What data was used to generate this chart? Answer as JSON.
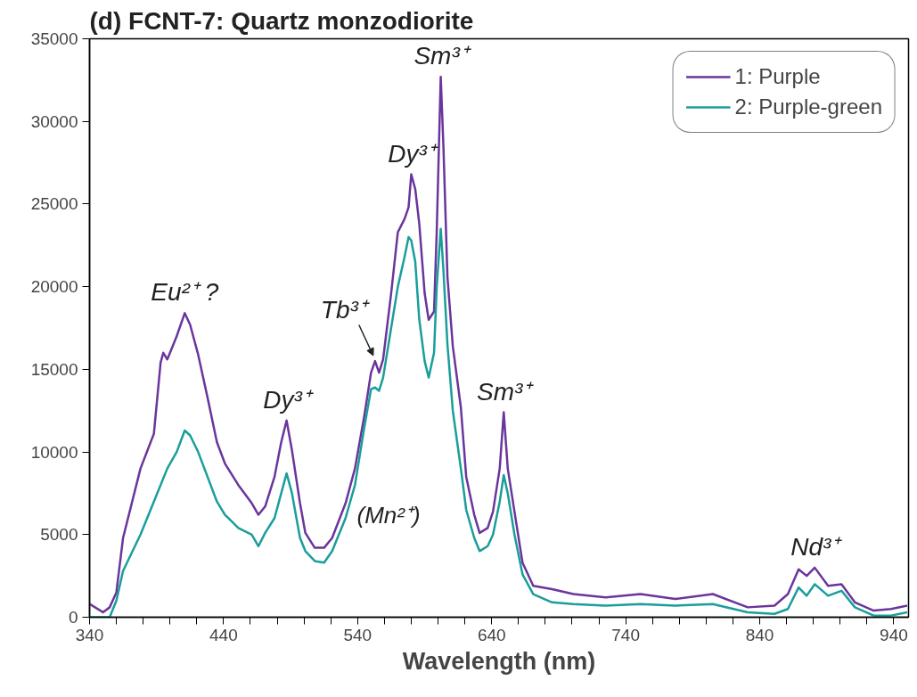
{
  "chart_data": {
    "type": "line",
    "title": "(d) FCNT-7: Quartz monzodiorite",
    "xlabel": "Wavelength (nm)",
    "xlim": [
      340,
      951
    ],
    "ylim": [
      0,
      35000
    ],
    "xticks": [
      340,
      {
        "value": 360,
        "label": null
      },
      {
        "value": 380,
        "label": null
      },
      {
        "value": 400,
        "label": null
      },
      {
        "value": 420,
        "label": null
      },
      440,
      {
        "value": 460,
        "label": null
      },
      {
        "value": 480,
        "label": null
      },
      {
        "value": 500,
        "label": null
      },
      {
        "value": 520,
        "label": null
      },
      540,
      {
        "value": 560,
        "label": null
      },
      {
        "value": 580,
        "label": null
      },
      {
        "value": 600,
        "label": null
      },
      {
        "value": 620,
        "label": null
      },
      640,
      {
        "value": 660,
        "label": null
      },
      {
        "value": 680,
        "label": null
      },
      {
        "value": 700,
        "label": null
      },
      {
        "value": 720,
        "label": null
      },
      740,
      {
        "value": 760,
        "label": null
      },
      {
        "value": 780,
        "label": null
      },
      {
        "value": 800,
        "label": null
      },
      {
        "value": 820,
        "label": null
      },
      840,
      {
        "value": 860,
        "label": null
      },
      {
        "value": 880,
        "label": null
      },
      {
        "value": 900,
        "label": null
      },
      {
        "value": 920,
        "label": null
      },
      940
    ],
    "yticks": [
      0,
      5000,
      10000,
      15000,
      20000,
      25000,
      30000,
      35000
    ],
    "grid": false,
    "legend": "top right",
    "marker": "none",
    "line_style": "solid",
    "series": [
      {
        "name": "1: Purple",
        "color": "#6a359c",
        "x": [
          340,
          350,
          355,
          360,
          365,
          378,
          388,
          393,
          395,
          398,
          405,
          411,
          415,
          421,
          428,
          435,
          441,
          451,
          461,
          466,
          471,
          478,
          483,
          487,
          491,
          497,
          501,
          508,
          515,
          521,
          531,
          538,
          545,
          550,
          553,
          556,
          559,
          565,
          570,
          575,
          578,
          580,
          583,
          586,
          590,
          593,
          597,
          599,
          602,
          604,
          607,
          611,
          617,
          621,
          627,
          631,
          637,
          641,
          646,
          649,
          652,
          657,
          663,
          671,
          685,
          701,
          725,
          751,
          777,
          805,
          831,
          851,
          861,
          869,
          875,
          881,
          891,
          901,
          911,
          925,
          938,
          950
        ],
        "values": [
          800,
          300,
          600,
          1500,
          4800,
          9000,
          11100,
          15400,
          16000,
          15600,
          17000,
          18400,
          17700,
          15900,
          13300,
          10600,
          9300,
          8000,
          6900,
          6200,
          6700,
          8500,
          10600,
          11900,
          10100,
          6900,
          5100,
          4200,
          4200,
          4800,
          6900,
          9000,
          12200,
          14800,
          15500,
          14800,
          15600,
          19600,
          23300,
          24100,
          24800,
          26800,
          25900,
          23800,
          19600,
          18000,
          18500,
          23300,
          32700,
          28500,
          20600,
          16400,
          12700,
          8500,
          6200,
          5100,
          5400,
          6400,
          9000,
          12400,
          9000,
          6400,
          3300,
          1900,
          1700,
          1400,
          1200,
          1400,
          1100,
          1400,
          600,
          700,
          1400,
          2900,
          2500,
          3000,
          1900,
          2000,
          900,
          400,
          500,
          700
        ]
      },
      {
        "name": "2: Purple-green",
        "color": "#1a9e9a",
        "x": [
          340,
          355,
          360,
          365,
          378,
          388,
          398,
          405,
          411,
          415,
          421,
          428,
          435,
          441,
          451,
          461,
          466,
          471,
          478,
          483,
          487,
          491,
          497,
          501,
          508,
          515,
          521,
          531,
          538,
          545,
          550,
          553,
          556,
          559,
          565,
          570,
          575,
          578,
          580,
          583,
          586,
          590,
          593,
          597,
          599,
          602,
          604,
          607,
          611,
          617,
          621,
          627,
          631,
          637,
          641,
          646,
          649,
          652,
          657,
          663,
          671,
          685,
          701,
          725,
          751,
          777,
          805,
          831,
          851,
          861,
          869,
          875,
          881,
          891,
          901,
          911,
          925,
          938,
          950
        ],
        "values": [
          0,
          0,
          1000,
          2800,
          5000,
          7000,
          9000,
          10000,
          11300,
          11000,
          10000,
          8500,
          7000,
          6200,
          5400,
          5000,
          4300,
          5100,
          6000,
          7500,
          8700,
          7500,
          4800,
          4000,
          3400,
          3300,
          4000,
          6000,
          8000,
          11500,
          13800,
          13900,
          13700,
          14500,
          17500,
          20000,
          21800,
          23000,
          22800,
          21500,
          18000,
          15500,
          14500,
          16000,
          20000,
          23500,
          21000,
          16500,
          12500,
          9000,
          6500,
          4800,
          4000,
          4300,
          5000,
          7000,
          8600,
          7500,
          5000,
          2600,
          1400,
          900,
          800,
          700,
          800,
          700,
          800,
          300,
          200,
          500,
          1800,
          1300,
          2000,
          1300,
          1600,
          600,
          100,
          100,
          300
        ]
      }
    ],
    "annotations": [
      {
        "text": "Eu²⁺ ?",
        "x": 411,
        "y": 18400
      },
      {
        "text": "Dy³⁺",
        "x": 487,
        "y": 11900
      },
      {
        "text": "Tb³⁺",
        "x": 553,
        "y": 15500
      },
      {
        "text": "Dy³⁺",
        "x": 580,
        "y": 26800
      },
      {
        "text": "Sm³⁺",
        "x": 602,
        "y": 32700
      },
      {
        "text": "Sm³⁺",
        "x": 649,
        "y": 12400
      },
      "(Mn²⁺)",
      {
        "text": "Nd³⁺",
        "x": 881,
        "y": 3000
      }
    ]
  }
}
